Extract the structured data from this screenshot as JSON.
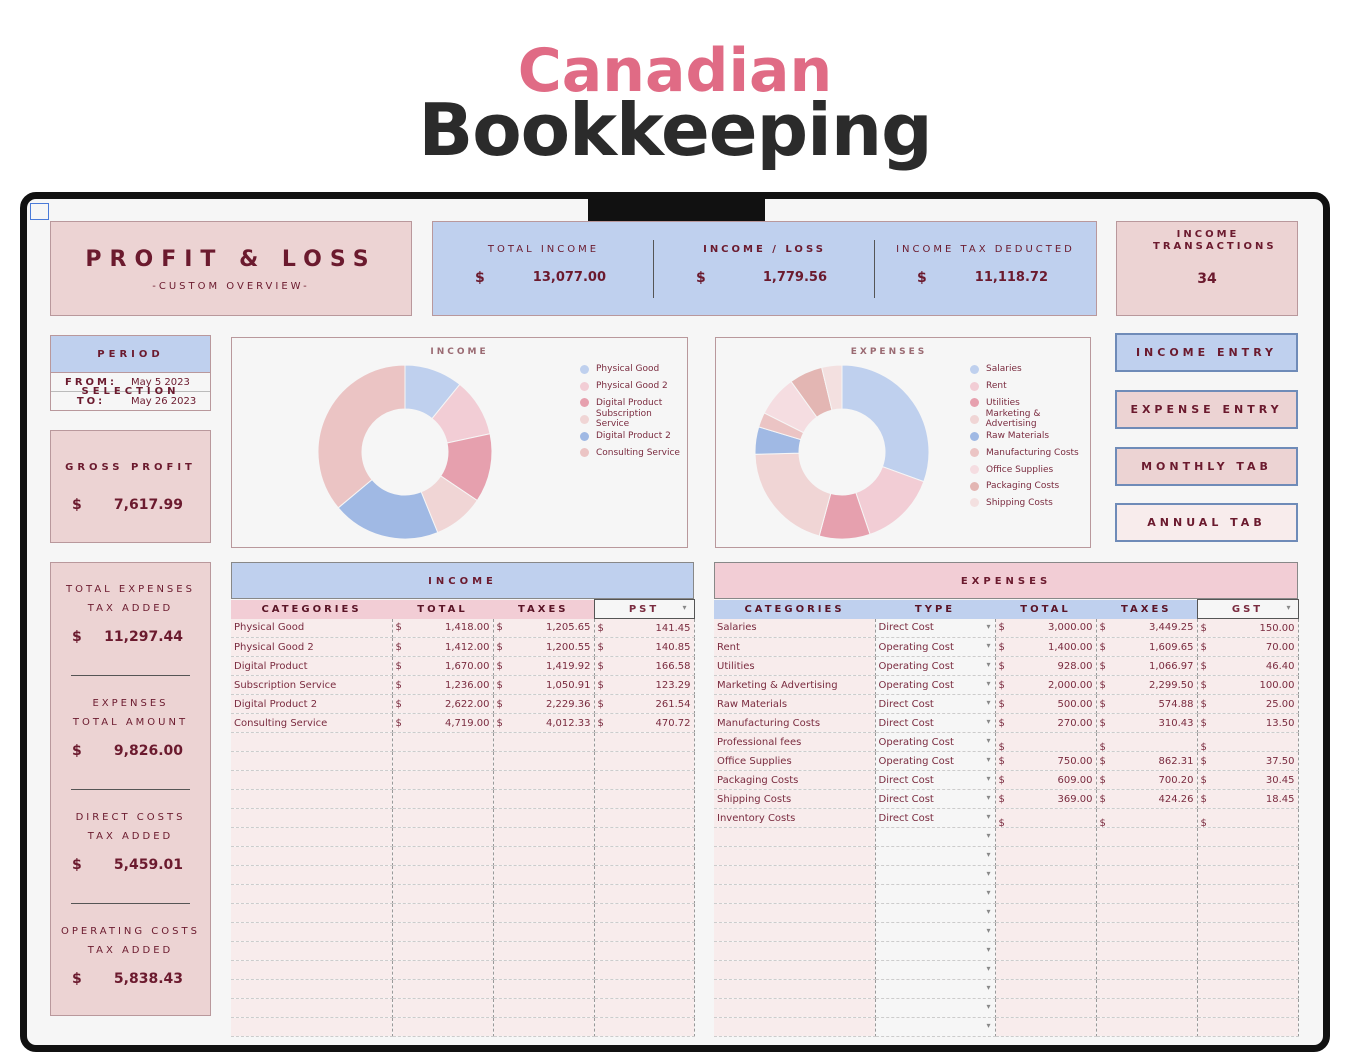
{
  "header": {
    "title_line1": "Canadian",
    "title_line2": "Bookkeeping"
  },
  "pl": {
    "title": "PROFIT & LOSS",
    "subtitle": "-CUSTOM OVERVIEW-"
  },
  "kpis": [
    {
      "label": "TOTAL INCOME",
      "currency": "$",
      "value": "13,077.00"
    },
    {
      "label": "INCOME / LOSS",
      "currency": "$",
      "value": "1,779.56"
    },
    {
      "label": "INCOME TAX DEDUCTED",
      "currency": "$",
      "value": "11,118.72"
    }
  ],
  "income_transactions": {
    "label": "INCOME TRANSACTIONS",
    "value": "34"
  },
  "period": {
    "title": "PERIOD SELECTION",
    "from_label": "FROM:",
    "from": "May 5 2023",
    "to_label": "TO:",
    "to": "May 26 2023"
  },
  "gross_profit": {
    "label": "GROSS PROFIT",
    "currency": "$",
    "value": "7,617.99"
  },
  "summary": [
    {
      "l1": "TOTAL EXPENSES",
      "l2": "TAX ADDED",
      "currency": "$",
      "value": "11,297.44"
    },
    {
      "l1": "EXPENSES",
      "l2": "TOTAL AMOUNT",
      "currency": "$",
      "value": "9,826.00"
    },
    {
      "l1": "DIRECT COSTS",
      "l2": "TAX ADDED",
      "currency": "$",
      "value": "5,459.01"
    },
    {
      "l1": "OPERATING COSTS",
      "l2": "TAX ADDED",
      "currency": "$",
      "value": "5,838.43"
    }
  ],
  "buttons": {
    "income_entry": "INCOME ENTRY",
    "expense_entry": "EXPENSE ENTRY",
    "monthly_tab": "MONTHLY TAB",
    "annual_tab": "ANNUAL TAB"
  },
  "chart_data": [
    {
      "type": "pie",
      "title": "INCOME",
      "legend": "right",
      "categories": [
        "Physical Good",
        "Physical Good 2",
        "Digital Product",
        "Subscription Service",
        "Digital Product 2",
        "Consulting Service"
      ],
      "values": [
        1418,
        1412,
        1670,
        1236,
        2622,
        4719
      ],
      "colors": [
        "#bfd0ee",
        "#f2cdd5",
        "#e6a0ae",
        "#f0d5d5",
        "#a0b9e4",
        "#ebc4c4"
      ]
    },
    {
      "type": "pie",
      "title": "EXPENSES",
      "legend": "right",
      "categories": [
        "Salaries",
        "Rent",
        "Utilities",
        "Marketing & Advertising",
        "Raw Materials",
        "Manufacturing Costs",
        "Office Supplies",
        "Packaging Costs",
        "Shipping Costs"
      ],
      "values": [
        3000,
        1400,
        928,
        2000,
        500,
        270,
        750,
        609,
        369
      ],
      "colors": [
        "#bfd0ee",
        "#f2cdd5",
        "#e6a0ae",
        "#f0d5d5",
        "#a0b9e4",
        "#ebc4c4",
        "#f5dde1",
        "#e3b6b3",
        "#f3e0e0"
      ]
    }
  ],
  "income_table": {
    "title": "INCOME",
    "headers": [
      "CATEGORIES",
      "TOTAL",
      "TAXES",
      "PST"
    ],
    "rows": [
      [
        "Physical Good",
        "1,418.00",
        "1,205.65",
        "141.45"
      ],
      [
        "Physical Good 2",
        "1,412.00",
        "1,200.55",
        "140.85"
      ],
      [
        "Digital Product",
        "1,670.00",
        "1,419.92",
        "166.58"
      ],
      [
        "Subscription Service",
        "1,236.00",
        "1,050.91",
        "123.29"
      ],
      [
        "Digital Product 2",
        "2,622.00",
        "2,229.36",
        "261.54"
      ],
      [
        "Consulting Service",
        "4,719.00",
        "4,012.33",
        "470.72"
      ]
    ]
  },
  "expense_table": {
    "title": "EXPENSES",
    "headers": [
      "CATEGORIES",
      "TYPE",
      "TOTAL",
      "TAXES",
      "GST"
    ],
    "rows": [
      [
        "Salaries",
        "Direct Cost",
        "3,000.00",
        "3,449.25",
        "150.00"
      ],
      [
        "Rent",
        "Operating Cost",
        "1,400.00",
        "1,609.65",
        "70.00"
      ],
      [
        "Utilities",
        "Operating Cost",
        "928.00",
        "1,066.97",
        "46.40"
      ],
      [
        "Marketing & Advertising",
        "Operating Cost",
        "2,000.00",
        "2,299.50",
        "100.00"
      ],
      [
        "Raw Materials",
        "Direct Cost",
        "500.00",
        "574.88",
        "25.00"
      ],
      [
        "Manufacturing Costs",
        "Direct Cost",
        "270.00",
        "310.43",
        "13.50"
      ],
      [
        "Professional fees",
        "Operating Cost",
        "",
        "",
        ""
      ],
      [
        "Office Supplies",
        "Operating Cost",
        "750.00",
        "862.31",
        "37.50"
      ],
      [
        "Packaging Costs",
        "Direct Cost",
        "609.00",
        "700.20",
        "30.45"
      ],
      [
        "Shipping Costs",
        "Direct Cost",
        "369.00",
        "424.26",
        "18.45"
      ],
      [
        "Inventory Costs",
        "Direct Cost",
        "",
        "",
        ""
      ]
    ]
  },
  "currency": "$"
}
